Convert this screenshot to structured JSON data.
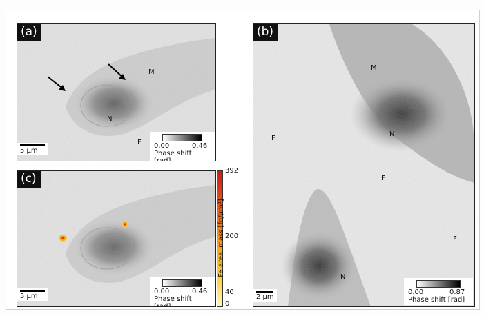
{
  "panels": {
    "a": {
      "label": "(a)",
      "markers": {
        "m": "M",
        "n": "N",
        "f": "F"
      },
      "scale_bar": "5 µm",
      "colorbar": {
        "min": "0.00",
        "max": "0.46",
        "title": "Phase shift [rad]"
      }
    },
    "b": {
      "label": "(b)",
      "markers": {
        "m": "M",
        "n_top": "N",
        "f_left": "F",
        "f_mid": "F",
        "f_right": "F",
        "n_bottom": "N"
      },
      "scale_bar": "2 µm",
      "colorbar": {
        "min": "0.00",
        "max": "0.87",
        "title": "Phase shift [rad]"
      }
    },
    "c": {
      "label": "(c)",
      "scale_bar": "5 µm",
      "colorbar": {
        "min": "0.00",
        "max": "0.46",
        "title": "Phase shift [rad]"
      },
      "fe_colorbar": {
        "title": "Fe areal mass [fg/µm²]",
        "ticks": [
          "392",
          "200",
          "40",
          "0"
        ]
      }
    }
  },
  "colors": {
    "fe_high": "#c81e14",
    "fe_mid": "#f8a21a",
    "fe_low": "#fff7c0"
  }
}
